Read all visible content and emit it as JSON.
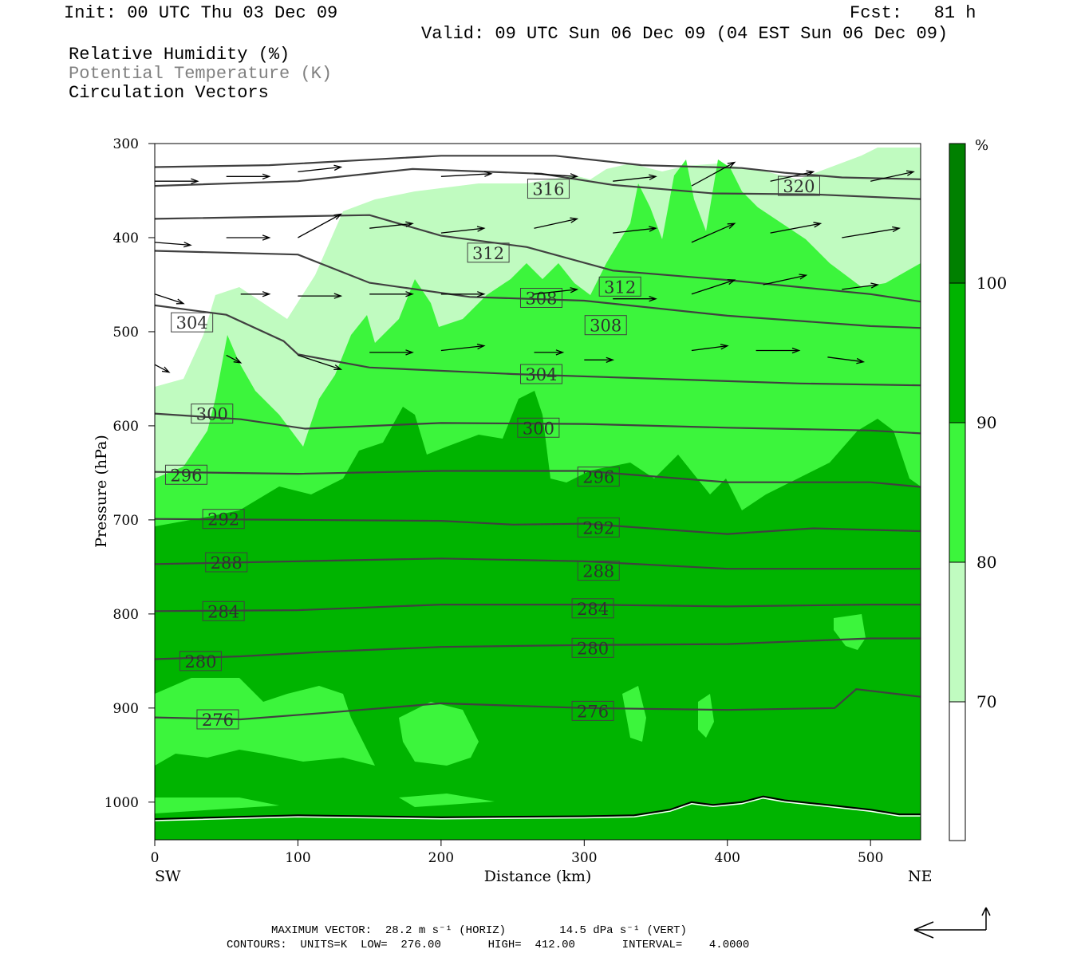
{
  "header": {
    "init": "Init: 00 UTC Thu 03 Dec 09",
    "fcst": "Fcst:   81 h",
    "valid": "Valid: 09 UTC Sun 06 Dec 09 (04 EST Sun 06 Dec 09)",
    "fields": [
      "Relative Humidity (%)",
      "Potential Temperature (K)",
      "Circulation Vectors"
    ]
  },
  "footer": {
    "line1": "MAXIMUM VECTOR:  28.2 m s⁻¹ (HORIZ)        14.5 dPa s⁻¹ (VERT)",
    "line2": "CONTOURS:  UNITS=K  LOW=  276.00       HIGH=  412.00       INTERVAL=    4.0000"
  },
  "colors": {
    "rh_70_80": "#c0fbc0",
    "rh_80_90": "#3cf53c",
    "rh_90_100": "#00b400",
    "rh_100": "#008000",
    "theta_line": "#404040",
    "theta_label_light": "#808080"
  },
  "chart_data": {
    "type": "contour-cross-section",
    "xlabel": "Distance (km)",
    "ylabel": "Pressure (hPa)",
    "xlim": [
      0,
      535
    ],
    "ylim": [
      1040,
      300
    ],
    "x_ticks": [
      0,
      100,
      200,
      300,
      400,
      500
    ],
    "y_ticks": [
      300,
      400,
      500,
      600,
      700,
      800,
      900,
      1000
    ],
    "endpoint_left": "SW",
    "endpoint_right": "NE",
    "colorbar": {
      "unit": "%",
      "levels": [
        70,
        80,
        90,
        100
      ]
    },
    "theta_contours": [
      {
        "value": 276,
        "points": [
          [
            0,
            910
          ],
          [
            60,
            912
          ],
          [
            120,
            905
          ],
          [
            200,
            895
          ],
          [
            300,
            900
          ],
          [
            400,
            902
          ],
          [
            475,
            900
          ],
          [
            490,
            880
          ],
          [
            535,
            888
          ]
        ]
      },
      {
        "value": 280,
        "points": [
          [
            0,
            848
          ],
          [
            60,
            845
          ],
          [
            120,
            840
          ],
          [
            200,
            835
          ],
          [
            300,
            833
          ],
          [
            400,
            832
          ],
          [
            500,
            826
          ],
          [
            535,
            826
          ]
        ]
      },
      {
        "value": 284,
        "points": [
          [
            0,
            797
          ],
          [
            100,
            796
          ],
          [
            200,
            790
          ],
          [
            300,
            790
          ],
          [
            400,
            792
          ],
          [
            500,
            790
          ],
          [
            535,
            790
          ]
        ]
      },
      {
        "value": 288,
        "points": [
          [
            0,
            747
          ],
          [
            100,
            744
          ],
          [
            200,
            741
          ],
          [
            300,
            744
          ],
          [
            400,
            752
          ],
          [
            500,
            752
          ],
          [
            535,
            752
          ]
        ]
      },
      {
        "value": 292,
        "points": [
          [
            0,
            699
          ],
          [
            100,
            700
          ],
          [
            200,
            701
          ],
          [
            250,
            705
          ],
          [
            300,
            704
          ],
          [
            400,
            715
          ],
          [
            460,
            709
          ],
          [
            535,
            712
          ]
        ]
      },
      {
        "value": 296,
        "points": [
          [
            0,
            649
          ],
          [
            100,
            651
          ],
          [
            200,
            648
          ],
          [
            300,
            648
          ],
          [
            400,
            660
          ],
          [
            500,
            660
          ],
          [
            535,
            665
          ]
        ]
      },
      {
        "value": 300,
        "points": [
          [
            0,
            587
          ],
          [
            60,
            593
          ],
          [
            105,
            603
          ],
          [
            200,
            597
          ],
          [
            300,
            598
          ],
          [
            400,
            602
          ],
          [
            500,
            605
          ],
          [
            535,
            608
          ]
        ]
      },
      {
        "value": 304,
        "points": [
          [
            0,
            472
          ],
          [
            50,
            482
          ],
          [
            90,
            510
          ],
          [
            100,
            524
          ],
          [
            150,
            538
          ],
          [
            250,
            545
          ],
          [
            350,
            550
          ],
          [
            450,
            555
          ],
          [
            535,
            557
          ]
        ]
      },
      {
        "value": 308,
        "points": [
          [
            0,
            414
          ],
          [
            100,
            418
          ],
          [
            150,
            448
          ],
          [
            220,
            463
          ],
          [
            300,
            467
          ],
          [
            400,
            483
          ],
          [
            500,
            494
          ],
          [
            535,
            496
          ]
        ]
      },
      {
        "value": 312,
        "points": [
          [
            0,
            380
          ],
          [
            150,
            376
          ],
          [
            200,
            398
          ],
          [
            260,
            410
          ],
          [
            320,
            435
          ],
          [
            400,
            445
          ],
          [
            500,
            460
          ],
          [
            535,
            468
          ]
        ]
      },
      {
        "value": 316,
        "points": [
          [
            0,
            345
          ],
          [
            100,
            340
          ],
          [
            180,
            327
          ],
          [
            270,
            332
          ],
          [
            320,
            344
          ],
          [
            390,
            353
          ],
          [
            460,
            354
          ],
          [
            535,
            359
          ]
        ]
      },
      {
        "value": 320,
        "points": [
          [
            0,
            325
          ],
          [
            80,
            323
          ],
          [
            200,
            313
          ],
          [
            280,
            313
          ],
          [
            340,
            323
          ],
          [
            410,
            326
          ],
          [
            440,
            331
          ],
          [
            480,
            336
          ],
          [
            535,
            338
          ]
        ]
      }
    ],
    "theta_labels": [
      {
        "value": 276,
        "x": 44,
        "p": 912
      },
      {
        "value": 280,
        "x": 32,
        "p": 850
      },
      {
        "value": 284,
        "x": 48,
        "p": 797
      },
      {
        "value": 288,
        "x": 50,
        "p": 745
      },
      {
        "value": 292,
        "x": 48,
        "p": 699
      },
      {
        "value": 296,
        "x": 22,
        "p": 652
      },
      {
        "value": 300,
        "x": 40,
        "p": 587
      },
      {
        "value": 304,
        "x": 26,
        "p": 490
      },
      {
        "value": 308,
        "x": 270,
        "p": 464
      },
      {
        "value": 312,
        "x": 233,
        "p": 416
      },
      {
        "value": 316,
        "x": 275,
        "p": 348
      },
      {
        "value": 320,
        "x": 450,
        "p": 345
      },
      {
        "value": 312,
        "x": 325,
        "p": 452
      },
      {
        "value": 308,
        "x": 315,
        "p": 493
      },
      {
        "value": 304,
        "x": 270,
        "p": 545
      },
      {
        "value": 300,
        "x": 268,
        "p": 602
      },
      {
        "value": 296,
        "x": 310,
        "p": 654
      },
      {
        "value": 292,
        "x": 310,
        "p": 708
      },
      {
        "value": 288,
        "x": 310,
        "p": 754
      },
      {
        "value": 284,
        "x": 306,
        "p": 794
      },
      {
        "value": 280,
        "x": 306,
        "p": 836
      },
      {
        "value": 276,
        "x": 306,
        "p": 903
      }
    ],
    "terrain": [
      [
        0,
        1018
      ],
      [
        100,
        1014
      ],
      [
        200,
        1016
      ],
      [
        300,
        1015
      ],
      [
        335,
        1014
      ],
      [
        360,
        1008
      ],
      [
        375,
        1000
      ],
      [
        390,
        1003
      ],
      [
        410,
        1000
      ],
      [
        425,
        994
      ],
      [
        440,
        998
      ],
      [
        470,
        1003
      ],
      [
        500,
        1008
      ],
      [
        520,
        1013
      ],
      [
        535,
        1013
      ]
    ],
    "vectors": [
      {
        "x": 0,
        "p": 340,
        "dx": 30,
        "dp": 0
      },
      {
        "x": 50,
        "p": 335,
        "dx": 30,
        "dp": 0
      },
      {
        "x": 100,
        "p": 330,
        "dx": 30,
        "dp": -5
      },
      {
        "x": 200,
        "p": 335,
        "dx": 35,
        "dp": -3
      },
      {
        "x": 265,
        "p": 332,
        "dx": 30,
        "dp": 3
      },
      {
        "x": 320,
        "p": 340,
        "dx": 30,
        "dp": -5
      },
      {
        "x": 375,
        "p": 345,
        "dx": 30,
        "dp": -25
      },
      {
        "x": 430,
        "p": 340,
        "dx": 30,
        "dp": -10
      },
      {
        "x": 500,
        "p": 340,
        "dx": 30,
        "dp": -10
      },
      {
        "x": 0,
        "p": 405,
        "dx": 25,
        "dp": 3
      },
      {
        "x": 50,
        "p": 400,
        "dx": 30,
        "dp": 0
      },
      {
        "x": 100,
        "p": 400,
        "dx": 30,
        "dp": -25
      },
      {
        "x": 150,
        "p": 390,
        "dx": 30,
        "dp": -5
      },
      {
        "x": 200,
        "p": 395,
        "dx": 30,
        "dp": -5
      },
      {
        "x": 265,
        "p": 390,
        "dx": 30,
        "dp": -10
      },
      {
        "x": 320,
        "p": 395,
        "dx": 30,
        "dp": -5
      },
      {
        "x": 375,
        "p": 405,
        "dx": 30,
        "dp": -20
      },
      {
        "x": 430,
        "p": 395,
        "dx": 35,
        "dp": -10
      },
      {
        "x": 480,
        "p": 400,
        "dx": 40,
        "dp": -10
      },
      {
        "x": 0,
        "p": 460,
        "dx": 20,
        "dp": 10
      },
      {
        "x": 60,
        "p": 460,
        "dx": 20,
        "dp": 0
      },
      {
        "x": 100,
        "p": 462,
        "dx": 30,
        "dp": 0
      },
      {
        "x": 150,
        "p": 460,
        "dx": 30,
        "dp": 0
      },
      {
        "x": 200,
        "p": 460,
        "dx": 30,
        "dp": 0
      },
      {
        "x": 265,
        "p": 460,
        "dx": 30,
        "dp": -5
      },
      {
        "x": 320,
        "p": 465,
        "dx": 30,
        "dp": 0
      },
      {
        "x": 375,
        "p": 460,
        "dx": 30,
        "dp": -15
      },
      {
        "x": 425,
        "p": 450,
        "dx": 30,
        "dp": -10
      },
      {
        "x": 480,
        "p": 455,
        "dx": 25,
        "dp": -5
      },
      {
        "x": 0,
        "p": 535,
        "dx": 10,
        "dp": 8
      },
      {
        "x": 50,
        "p": 525,
        "dx": 10,
        "dp": 8
      },
      {
        "x": 100,
        "p": 525,
        "dx": 30,
        "dp": 15
      },
      {
        "x": 150,
        "p": 522,
        "dx": 30,
        "dp": 0
      },
      {
        "x": 200,
        "p": 520,
        "dx": 30,
        "dp": -5
      },
      {
        "x": 265,
        "p": 522,
        "dx": 20,
        "dp": 0
      },
      {
        "x": 300,
        "p": 530,
        "dx": 20,
        "dp": 0
      },
      {
        "x": 375,
        "p": 520,
        "dx": 25,
        "dp": -5
      },
      {
        "x": 420,
        "p": 520,
        "dx": 30,
        "dp": 0
      },
      {
        "x": 470,
        "p": 527,
        "dx": 25,
        "dp": 5
      }
    ]
  }
}
